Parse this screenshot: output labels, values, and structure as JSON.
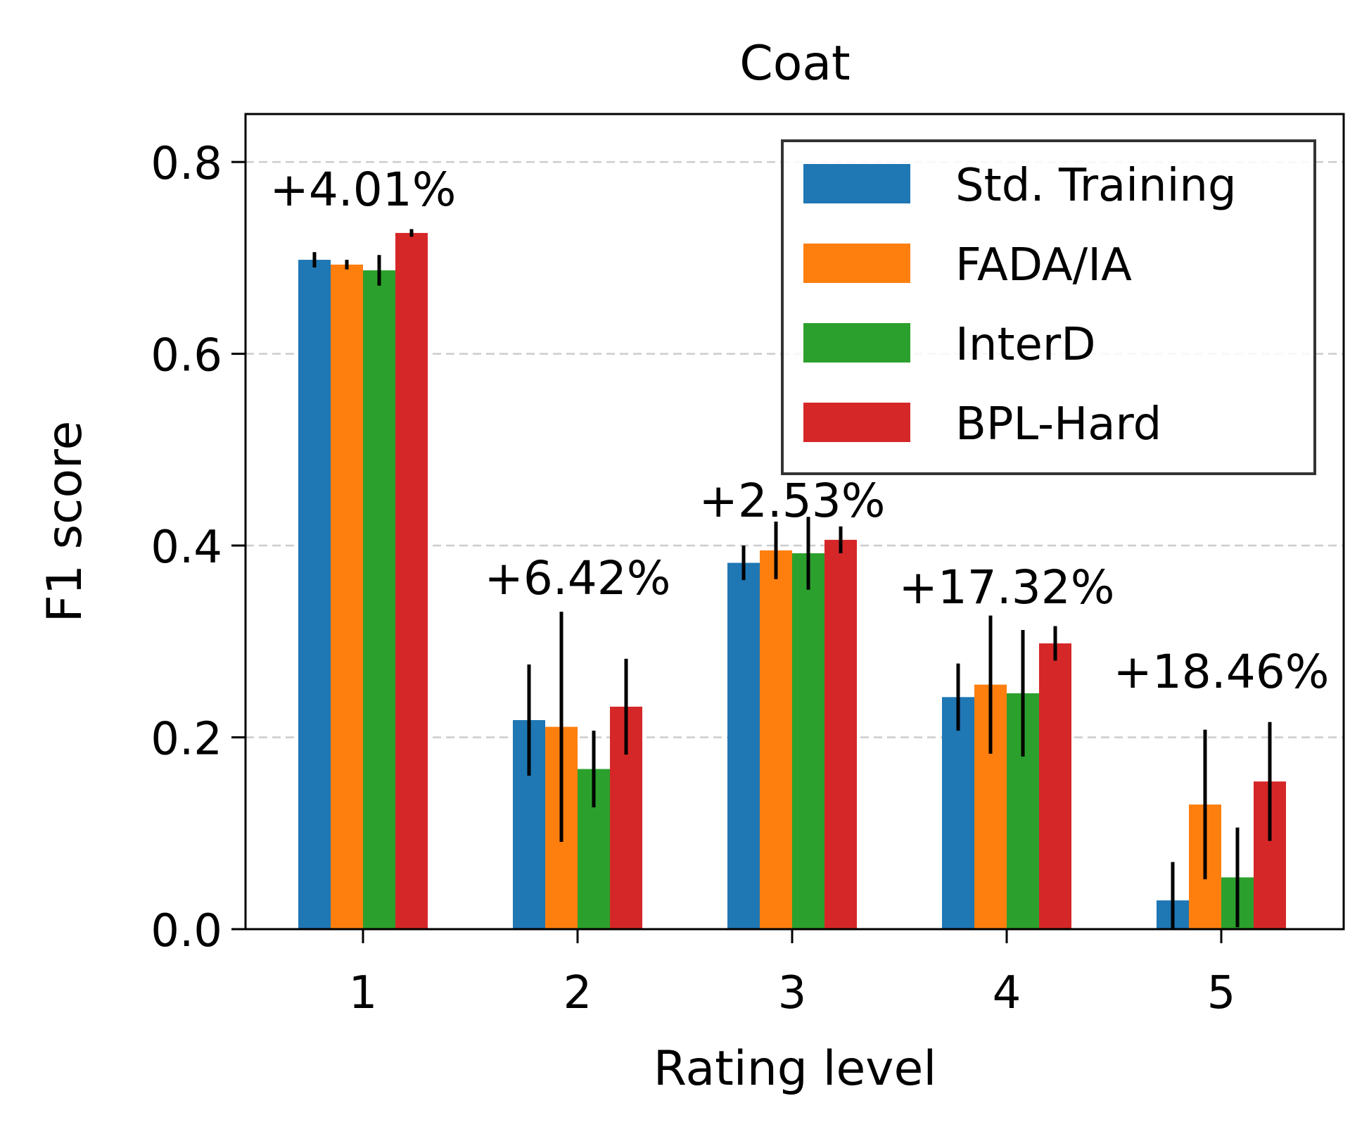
{
  "chart_data": {
    "type": "bar",
    "title": "Coat",
    "xlabel": "Rating level",
    "ylabel": "F1 score",
    "categories": [
      "1",
      "2",
      "3",
      "4",
      "5"
    ],
    "ylim": [
      0,
      0.85
    ],
    "yticks": [
      0.0,
      0.2,
      0.4,
      0.6,
      0.8
    ],
    "ytick_labels": [
      "0.0",
      "0.2",
      "0.4",
      "0.6",
      "0.8"
    ],
    "grid": "horizontal-dashed",
    "legend_position": "top-right",
    "series": [
      {
        "name": "Std. Training",
        "color": "#1f77b4",
        "values": [
          0.698,
          0.218,
          0.382,
          0.242,
          0.03
        ],
        "errors": [
          0.008,
          0.058,
          0.018,
          0.035,
          0.04
        ]
      },
      {
        "name": "FADA/IA",
        "color": "#ff7f0e",
        "values": [
          0.693,
          0.211,
          0.395,
          0.255,
          0.13
        ],
        "errors": [
          0.005,
          0.12,
          0.03,
          0.072,
          0.078
        ]
      },
      {
        "name": "InterD",
        "color": "#2ca02c",
        "values": [
          0.687,
          0.167,
          0.392,
          0.246,
          0.054
        ],
        "errors": [
          0.016,
          0.04,
          0.038,
          0.066,
          0.052
        ]
      },
      {
        "name": "BPL-Hard",
        "color": "#d62728",
        "values": [
          0.726,
          0.232,
          0.406,
          0.298,
          0.154
        ],
        "errors": [
          0.004,
          0.05,
          0.014,
          0.018,
          0.062
        ]
      }
    ],
    "annotations": [
      {
        "category": "1",
        "text": "+4.01%"
      },
      {
        "category": "2",
        "text": "+6.42%"
      },
      {
        "category": "3",
        "text": "+2.53%"
      },
      {
        "category": "4",
        "text": "+17.32%"
      },
      {
        "category": "5",
        "text": "+18.46%"
      }
    ]
  }
}
